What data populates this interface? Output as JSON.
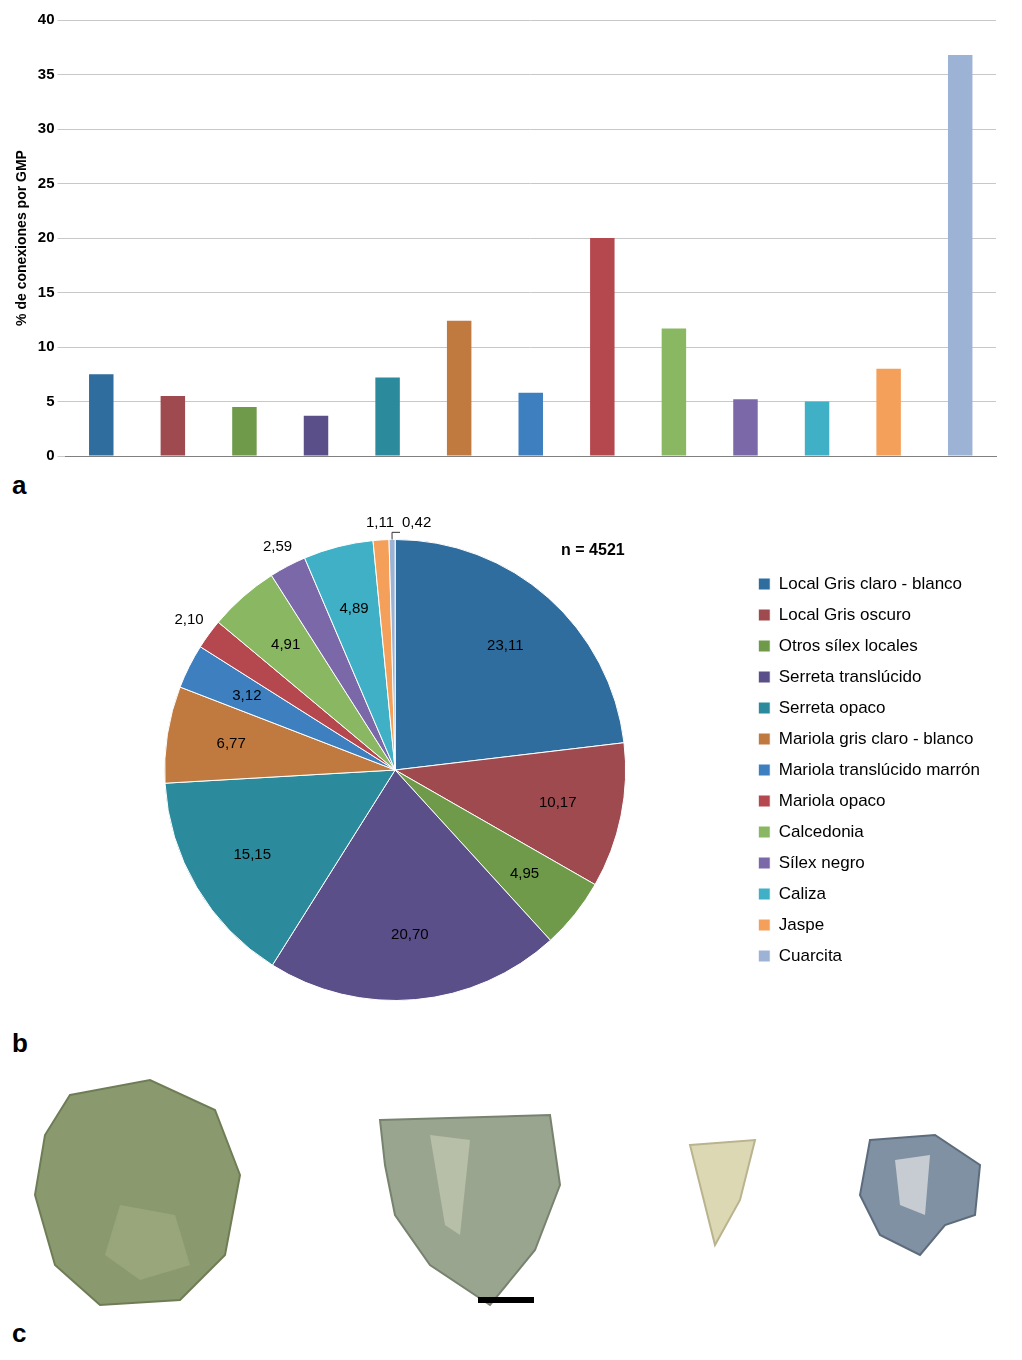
{
  "chart_data": [
    {
      "panel": "a",
      "type": "bar",
      "y_label": "% de conexiones por GMP",
      "categories": [
        null,
        null,
        null,
        null,
        null,
        null,
        null,
        null,
        null,
        null,
        null,
        null,
        null
      ],
      "values": [
        7.5,
        5.5,
        4.5,
        3.7,
        7.2,
        12.4,
        5.8,
        20.0,
        11.7,
        5.2,
        5.0,
        8.0,
        36.8
      ],
      "colors": [
        "#2f6d9e",
        "#9e4a4e",
        "#6e9a4a",
        "#5b4f8a",
        "#2b8a9c",
        "#c07a40",
        "#3d7fbf",
        "#b5484f",
        "#8ab862",
        "#7b68a8",
        "#3fb0c6",
        "#f4a05a",
        "#9db3d6"
      ],
      "ylim": [
        0,
        40
      ],
      "yticks": [
        0,
        5,
        10,
        15,
        20,
        25,
        30,
        35,
        40
      ],
      "grid": true,
      "tick_labels": "y"
    },
    {
      "panel": "b",
      "type": "pie",
      "annotation": "n = 4521",
      "categories": [
        "Local Gris claro - blanco",
        "Local Gris oscuro",
        "Otros sílex locales",
        "Serreta translúcido",
        "Serreta opaco",
        "Mariola gris claro - blanco",
        "Mariola translúcido marrón",
        "Mariola opaco",
        "Calcedonia",
        "Sílex negro",
        "Caliza",
        "Jaspe",
        "Cuarcita"
      ],
      "values": [
        23.11,
        10.17,
        4.95,
        20.7,
        15.15,
        6.77,
        3.12,
        2.1,
        4.91,
        2.59,
        4.89,
        1.11,
        0.42
      ],
      "value_labels": [
        "23,11",
        "10,17",
        "4,95",
        "20,70",
        "15,15",
        "6,77",
        "3,12",
        "2,10",
        "4,91",
        "2,59",
        "4,89",
        "1,11",
        "0,42"
      ],
      "colors": [
        "#2f6d9e",
        "#9e4a4e",
        "#6e9a4a",
        "#5b4f8a",
        "#2b8a9c",
        "#c07a40",
        "#3d7fbf",
        "#b5484f",
        "#8ab862",
        "#7b68a8",
        "#3fb0c6",
        "#f4a05a",
        "#9db3d6"
      ],
      "data_labels": true,
      "legend": "right"
    }
  ],
  "panel_c": {
    "label": "c"
  }
}
